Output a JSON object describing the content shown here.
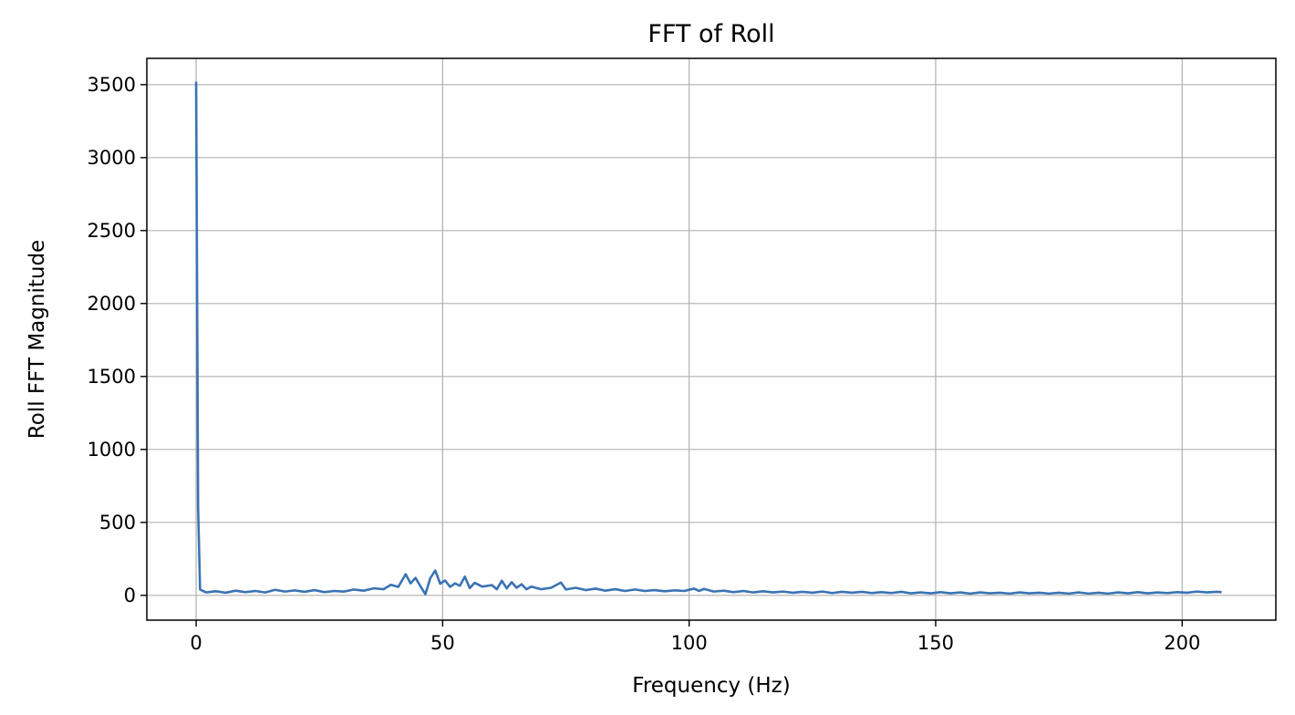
{
  "chart_data": {
    "type": "line",
    "title": "FFT of Roll",
    "xlabel": "Frequency (Hz)",
    "ylabel": "Roll FFT Magnitude",
    "xlim": [
      -10,
      219
    ],
    "ylim": [
      -170,
      3680
    ],
    "x_ticks": [
      0,
      50,
      100,
      150,
      200
    ],
    "y_ticks": [
      0,
      500,
      1000,
      1500,
      2000,
      2500,
      3000,
      3500
    ],
    "grid": true,
    "legend": "none",
    "series": [
      {
        "color": "#3a73b3",
        "points": [
          [
            0,
            3520
          ],
          [
            0.4,
            600
          ],
          [
            0.8,
            40
          ],
          [
            2,
            20
          ],
          [
            4,
            28
          ],
          [
            6,
            18
          ],
          [
            8,
            32
          ],
          [
            10,
            22
          ],
          [
            12,
            30
          ],
          [
            14,
            20
          ],
          [
            16,
            38
          ],
          [
            18,
            26
          ],
          [
            20,
            34
          ],
          [
            22,
            24
          ],
          [
            24,
            36
          ],
          [
            26,
            22
          ],
          [
            28,
            30
          ],
          [
            30,
            26
          ],
          [
            32,
            40
          ],
          [
            34,
            32
          ],
          [
            36,
            48
          ],
          [
            38,
            42
          ],
          [
            39.5,
            72
          ],
          [
            41,
            58
          ],
          [
            42.5,
            145
          ],
          [
            43.5,
            82
          ],
          [
            44.5,
            120
          ],
          [
            45.5,
            62
          ],
          [
            46.5,
            8
          ],
          [
            47.5,
            118
          ],
          [
            48.5,
            170
          ],
          [
            49.5,
            80
          ],
          [
            50.5,
            102
          ],
          [
            51.5,
            58
          ],
          [
            52.5,
            82
          ],
          [
            53.5,
            66
          ],
          [
            54.5,
            128
          ],
          [
            55.5,
            50
          ],
          [
            56.5,
            86
          ],
          [
            58,
            60
          ],
          [
            60,
            70
          ],
          [
            61,
            42
          ],
          [
            62,
            100
          ],
          [
            63,
            48
          ],
          [
            64,
            90
          ],
          [
            65,
            52
          ],
          [
            66,
            76
          ],
          [
            67,
            42
          ],
          [
            68,
            60
          ],
          [
            70,
            42
          ],
          [
            72,
            52
          ],
          [
            74,
            88
          ],
          [
            75,
            40
          ],
          [
            77,
            52
          ],
          [
            79,
            36
          ],
          [
            81,
            46
          ],
          [
            83,
            32
          ],
          [
            85,
            42
          ],
          [
            87,
            30
          ],
          [
            89,
            40
          ],
          [
            91,
            30
          ],
          [
            93,
            36
          ],
          [
            95,
            28
          ],
          [
            97,
            34
          ],
          [
            99,
            30
          ],
          [
            101,
            46
          ],
          [
            102,
            30
          ],
          [
            103,
            44
          ],
          [
            105,
            26
          ],
          [
            107,
            32
          ],
          [
            109,
            22
          ],
          [
            111,
            30
          ],
          [
            113,
            20
          ],
          [
            115,
            28
          ],
          [
            117,
            20
          ],
          [
            119,
            26
          ],
          [
            121,
            18
          ],
          [
            123,
            24
          ],
          [
            125,
            18
          ],
          [
            127,
            26
          ],
          [
            129,
            16
          ],
          [
            131,
            24
          ],
          [
            133,
            18
          ],
          [
            135,
            24
          ],
          [
            137,
            16
          ],
          [
            139,
            22
          ],
          [
            141,
            16
          ],
          [
            143,
            24
          ],
          [
            145,
            14
          ],
          [
            147,
            20
          ],
          [
            149,
            14
          ],
          [
            151,
            22
          ],
          [
            153,
            14
          ],
          [
            155,
            20
          ],
          [
            157,
            12
          ],
          [
            159,
            20
          ],
          [
            161,
            14
          ],
          [
            163,
            18
          ],
          [
            165,
            12
          ],
          [
            167,
            20
          ],
          [
            169,
            14
          ],
          [
            171,
            18
          ],
          [
            173,
            12
          ],
          [
            175,
            18
          ],
          [
            177,
            12
          ],
          [
            179,
            20
          ],
          [
            181,
            12
          ],
          [
            183,
            18
          ],
          [
            185,
            12
          ],
          [
            187,
            20
          ],
          [
            189,
            14
          ],
          [
            191,
            22
          ],
          [
            193,
            14
          ],
          [
            195,
            20
          ],
          [
            197,
            16
          ],
          [
            199,
            22
          ],
          [
            201,
            18
          ],
          [
            203,
            26
          ],
          [
            205,
            20
          ],
          [
            207,
            24
          ],
          [
            208,
            22
          ]
        ]
      }
    ]
  }
}
